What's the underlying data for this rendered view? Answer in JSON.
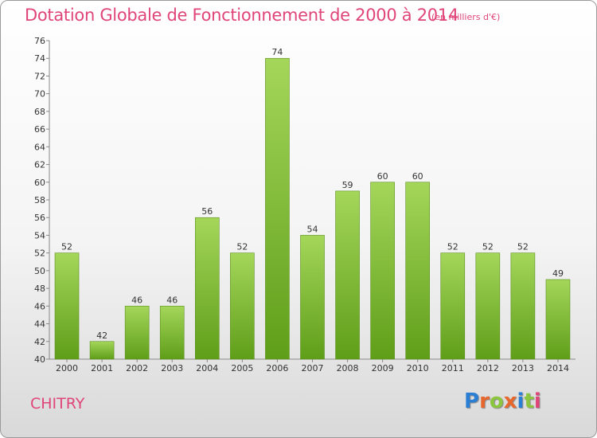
{
  "chart_data": {
    "type": "bar",
    "title": "Dotation Globale de Fonctionnement de 2000 à 2014",
    "subtitle": "(en milliers d'€)",
    "categories": [
      "2000",
      "2001",
      "2002",
      "2003",
      "2004",
      "2005",
      "2006",
      "2007",
      "2008",
      "2009",
      "2010",
      "2011",
      "2012",
      "2013",
      "2014"
    ],
    "values": [
      52,
      42,
      46,
      46,
      56,
      52,
      74,
      54,
      59,
      60,
      60,
      52,
      52,
      52,
      49
    ],
    "ylim": [
      40,
      76
    ],
    "yticks": [
      40,
      42,
      44,
      46,
      48,
      50,
      52,
      54,
      56,
      58,
      60,
      62,
      64,
      66,
      68,
      70,
      72,
      74,
      76
    ],
    "grid": false,
    "bar_color": "#8cc63f"
  },
  "footer": {
    "commune": "CHITRY",
    "logo": "Proxiti"
  }
}
